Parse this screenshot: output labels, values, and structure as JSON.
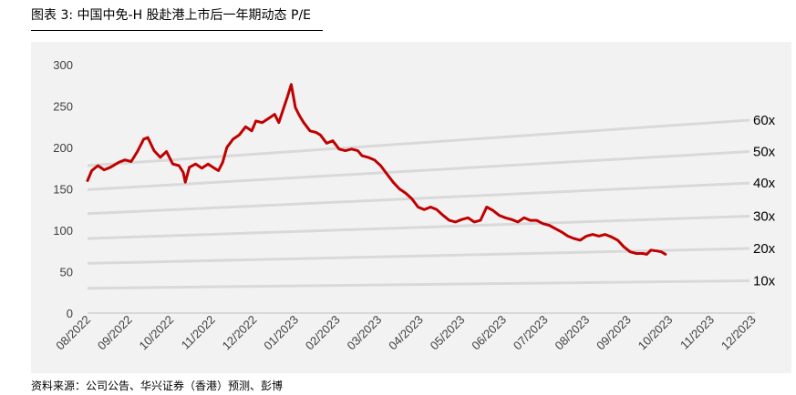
{
  "title": "图表 3: 中国中免-H  股赴港上市后一年期动态 P/E",
  "source": "资料来源：公司公告、华兴证券（香港）预测、彭博",
  "chart_data": {
    "type": "line",
    "ylim": [
      0,
      300
    ],
    "y_ticks": [
      "0",
      "50",
      "100",
      "150",
      "200",
      "250",
      "300"
    ],
    "x_ticks": [
      "08/2022",
      "09/2022",
      "10/2022",
      "11/2022",
      "12/2022",
      "01/2023",
      "02/2023",
      "03/2023",
      "04/2023",
      "05/2023",
      "06/2023",
      "07/2023",
      "08/2023",
      "09/2023",
      "10/2023",
      "11/2023",
      "12/2023"
    ],
    "grid": false,
    "price_series": {
      "color": "#c00000",
      "points": [
        [
          0,
          160
        ],
        [
          0.1,
          172
        ],
        [
          0.25,
          178
        ],
        [
          0.4,
          173
        ],
        [
          0.55,
          176
        ],
        [
          0.75,
          182
        ],
        [
          0.9,
          185
        ],
        [
          1.05,
          183
        ],
        [
          1.2,
          195
        ],
        [
          1.35,
          210
        ],
        [
          1.45,
          212
        ],
        [
          1.6,
          196
        ],
        [
          1.75,
          188
        ],
        [
          1.9,
          195
        ],
        [
          2.05,
          180
        ],
        [
          2.2,
          178
        ],
        [
          2.3,
          170
        ],
        [
          2.35,
          158
        ],
        [
          2.45,
          176
        ],
        [
          2.6,
          180
        ],
        [
          2.75,
          175
        ],
        [
          2.9,
          180
        ],
        [
          3.05,
          175
        ],
        [
          3.15,
          172
        ],
        [
          3.25,
          182
        ],
        [
          3.35,
          200
        ],
        [
          3.5,
          210
        ],
        [
          3.65,
          215
        ],
        [
          3.8,
          225
        ],
        [
          3.95,
          220
        ],
        [
          4.05,
          232
        ],
        [
          4.2,
          230
        ],
        [
          4.35,
          235
        ],
        [
          4.5,
          240
        ],
        [
          4.6,
          230
        ],
        [
          4.7,
          245
        ],
        [
          4.8,
          260
        ],
        [
          4.9,
          276
        ],
        [
          5.0,
          248
        ],
        [
          5.1,
          238
        ],
        [
          5.2,
          230
        ],
        [
          5.35,
          220
        ],
        [
          5.5,
          218
        ],
        [
          5.6,
          215
        ],
        [
          5.75,
          205
        ],
        [
          5.9,
          208
        ],
        [
          6.05,
          198
        ],
        [
          6.2,
          196
        ],
        [
          6.35,
          198
        ],
        [
          6.5,
          196
        ],
        [
          6.6,
          190
        ],
        [
          6.75,
          188
        ],
        [
          6.9,
          185
        ],
        [
          7.05,
          178
        ],
        [
          7.2,
          168
        ],
        [
          7.35,
          158
        ],
        [
          7.5,
          150
        ],
        [
          7.65,
          145
        ],
        [
          7.8,
          138
        ],
        [
          7.95,
          128
        ],
        [
          8.1,
          125
        ],
        [
          8.25,
          128
        ],
        [
          8.4,
          125
        ],
        [
          8.55,
          118
        ],
        [
          8.7,
          112
        ],
        [
          8.85,
          110
        ],
        [
          9.0,
          113
        ],
        [
          9.15,
          115
        ],
        [
          9.3,
          110
        ],
        [
          9.45,
          112
        ],
        [
          9.6,
          128
        ],
        [
          9.75,
          124
        ],
        [
          9.9,
          118
        ],
        [
          10.05,
          115
        ],
        [
          10.2,
          113
        ],
        [
          10.35,
          110
        ],
        [
          10.5,
          115
        ],
        [
          10.65,
          112
        ],
        [
          10.8,
          112
        ],
        [
          10.95,
          108
        ],
        [
          11.1,
          106
        ],
        [
          11.25,
          102
        ],
        [
          11.4,
          98
        ],
        [
          11.55,
          93
        ],
        [
          11.7,
          90
        ],
        [
          11.85,
          88
        ],
        [
          12.0,
          93
        ],
        [
          12.15,
          95
        ],
        [
          12.3,
          93
        ],
        [
          12.45,
          95
        ],
        [
          12.6,
          92
        ],
        [
          12.75,
          88
        ],
        [
          12.9,
          80
        ],
        [
          13.05,
          74
        ],
        [
          13.2,
          72
        ],
        [
          13.35,
          72
        ],
        [
          13.45,
          71
        ],
        [
          13.55,
          76
        ],
        [
          13.7,
          75
        ],
        [
          13.8,
          74
        ],
        [
          13.9,
          71
        ]
      ]
    },
    "series": [
      {
        "name": "60x",
        "start": 178,
        "end": 233
      },
      {
        "name": "50x",
        "start": 149,
        "end": 195
      },
      {
        "name": "40x",
        "start": 120,
        "end": 157
      },
      {
        "name": "30x",
        "start": 90,
        "end": 117
      },
      {
        "name": "20x",
        "start": 60,
        "end": 78
      },
      {
        "name": "10x",
        "start": 30,
        "end": 39
      }
    ],
    "band_color": "#d9d9d9"
  }
}
